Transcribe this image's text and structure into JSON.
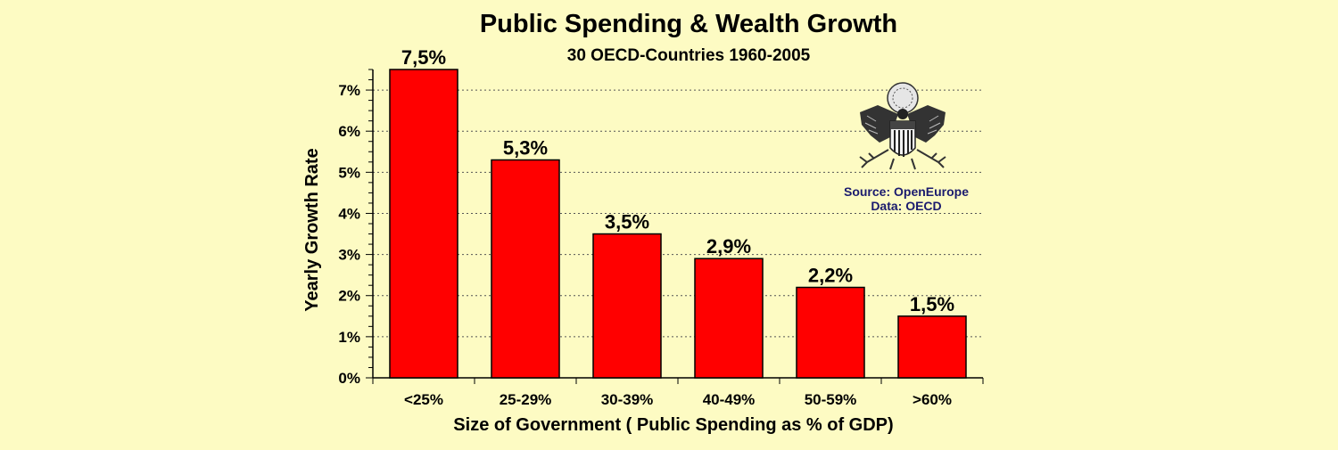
{
  "colors": {
    "background": "#fdfbc3",
    "bar": "#ff0000",
    "bar_outline": "#000000",
    "text": "#000000",
    "grid": "#555555"
  },
  "chart_data": {
    "type": "bar",
    "title": "Public Spending & Wealth Growth",
    "subtitle": "30 OECD-Countries 1960-2005",
    "xlabel": "Size of Government ( Public Spending as % of GDP)",
    "ylabel": "Yearly Growth Rate",
    "categories": [
      "<25%",
      "25-29%",
      "30-39%",
      "40-49%",
      "50-59%",
      ">60%"
    ],
    "values": [
      7.5,
      5.3,
      3.5,
      2.9,
      2.2,
      1.5
    ],
    "data_labels": [
      "7,5%",
      "5,3%",
      "3,5%",
      "2,9%",
      "2,2%",
      "1,5%"
    ],
    "ylim": [
      0,
      7.5
    ],
    "yticks": [
      0,
      1,
      2,
      3,
      4,
      5,
      6,
      7
    ],
    "ytick_labels": [
      "0%",
      "1%",
      "2%",
      "3%",
      "4%",
      "5%",
      "6%",
      "7%"
    ],
    "grid": "horizontal dotted",
    "legend": "none"
  },
  "source_note": {
    "source": "Source: OpenEurope",
    "data": "Data: OECD"
  },
  "seal": {
    "icon": "great-seal-eagle-icon"
  }
}
